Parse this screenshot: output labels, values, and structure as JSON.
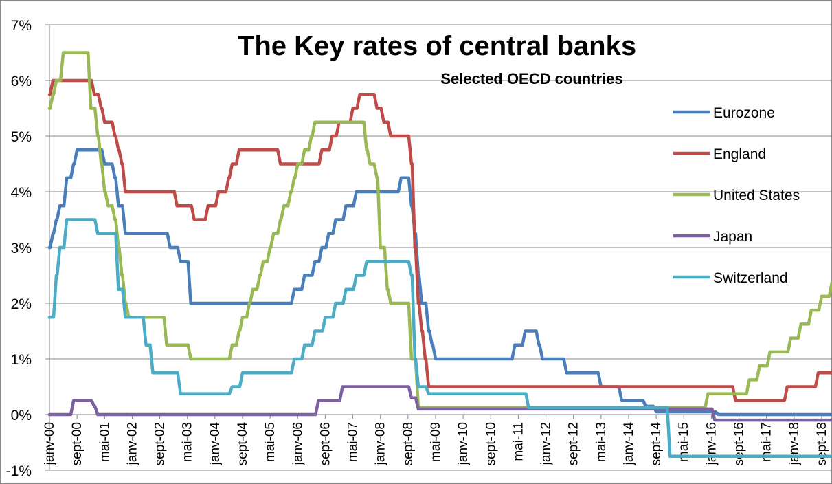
{
  "chart_data": {
    "type": "line",
    "title": "The Key rates of central banks",
    "subtitle": "Selected OECD countries",
    "xlabel": "",
    "ylabel": "",
    "xlim": [
      "2000-01",
      "2018-12"
    ],
    "ylim": [
      -1,
      7
    ],
    "y_ticks": [
      -1,
      0,
      1,
      2,
      3,
      4,
      5,
      6,
      7
    ],
    "y_tick_labels": [
      "-1%",
      "0%",
      "1%",
      "2%",
      "3%",
      "4%",
      "5%",
      "6%",
      "7%"
    ],
    "x_ticks": [
      "2000-01",
      "2000-09",
      "2001-05",
      "2002-01",
      "2002-09",
      "2003-05",
      "2004-01",
      "2004-09",
      "2005-05",
      "2006-01",
      "2006-09",
      "2007-05",
      "2008-01",
      "2008-09",
      "2009-05",
      "2010-01",
      "2010-09",
      "2011-05",
      "2012-01",
      "2012-09",
      "2013-05",
      "2014-01",
      "2014-09",
      "2015-05",
      "2016-01",
      "2016-09",
      "2017-05",
      "2018-01",
      "2018-09"
    ],
    "x_tick_labels": [
      "janv-00",
      "sept-00",
      "mai-01",
      "janv-02",
      "sept-02",
      "mai-03",
      "janv-04",
      "sept-04",
      "mai-05",
      "janv-06",
      "sept-06",
      "mai-07",
      "janv-08",
      "sept-08",
      "mai-09",
      "janv-10",
      "sept-10",
      "mai-11",
      "janv-12",
      "sept-12",
      "mai-13",
      "janv-14",
      "sept-14",
      "mai-15",
      "janv-16",
      "sept-16",
      "mai-17",
      "janv-18",
      "sept-18"
    ],
    "grid": "horizontal",
    "legend_position": "right",
    "series": [
      {
        "name": "Eurozone",
        "color": "#4A7EBB",
        "points": [
          [
            "2000-01",
            3
          ],
          [
            "2000-02",
            3.25
          ],
          [
            "2000-03",
            3.5
          ],
          [
            "2000-04",
            3.75
          ],
          [
            "2000-06",
            4.25
          ],
          [
            "2000-08",
            4.5
          ],
          [
            "2000-09",
            4.75
          ],
          [
            "2001-04",
            4.75
          ],
          [
            "2001-05",
            4.5
          ],
          [
            "2001-08",
            4.25
          ],
          [
            "2001-09",
            3.75
          ],
          [
            "2001-11",
            3.25
          ],
          [
            "2002-12",
            3.0
          ],
          [
            "2003-03",
            2.75
          ],
          [
            "2003-06",
            2.0
          ],
          [
            "2005-12",
            2.25
          ],
          [
            "2006-03",
            2.5
          ],
          [
            "2006-06",
            2.75
          ],
          [
            "2006-08",
            3.0
          ],
          [
            "2006-10",
            3.25
          ],
          [
            "2006-12",
            3.5
          ],
          [
            "2007-03",
            3.75
          ],
          [
            "2007-06",
            4.0
          ],
          [
            "2008-07",
            4.25
          ],
          [
            "2008-10",
            3.75
          ],
          [
            "2008-11",
            3.25
          ],
          [
            "2008-12",
            2.5
          ],
          [
            "2009-01",
            2.0
          ],
          [
            "2009-03",
            1.5
          ],
          [
            "2009-04",
            1.25
          ],
          [
            "2009-05",
            1.0
          ],
          [
            "2011-04",
            1.25
          ],
          [
            "2011-07",
            1.5
          ],
          [
            "2011-11",
            1.25
          ],
          [
            "2011-12",
            1.0
          ],
          [
            "2012-07",
            0.75
          ],
          [
            "2013-05",
            0.5
          ],
          [
            "2013-11",
            0.25
          ],
          [
            "2014-06",
            0.15
          ],
          [
            "2014-09",
            0.05
          ],
          [
            "2016-03",
            0.0
          ],
          [
            "2018-12",
            0.0
          ]
        ]
      },
      {
        "name": "England",
        "color": "#BE4B48",
        "points": [
          [
            "2000-01",
            5.75
          ],
          [
            "2000-02",
            6.0
          ],
          [
            "2001-02",
            5.75
          ],
          [
            "2001-04",
            5.5
          ],
          [
            "2001-05",
            5.25
          ],
          [
            "2001-08",
            5.0
          ],
          [
            "2001-09",
            4.75
          ],
          [
            "2001-10",
            4.5
          ],
          [
            "2001-11",
            4.0
          ],
          [
            "2003-02",
            3.75
          ],
          [
            "2003-07",
            3.5
          ],
          [
            "2003-11",
            3.75
          ],
          [
            "2004-02",
            4.0
          ],
          [
            "2004-05",
            4.25
          ],
          [
            "2004-06",
            4.5
          ],
          [
            "2004-08",
            4.75
          ],
          [
            "2005-08",
            4.5
          ],
          [
            "2006-08",
            4.75
          ],
          [
            "2006-11",
            5.0
          ],
          [
            "2007-01",
            5.25
          ],
          [
            "2007-05",
            5.5
          ],
          [
            "2007-07",
            5.75
          ],
          [
            "2007-12",
            5.5
          ],
          [
            "2008-02",
            5.25
          ],
          [
            "2008-04",
            5.0
          ],
          [
            "2008-10",
            4.5
          ],
          [
            "2008-11",
            3.0
          ],
          [
            "2008-12",
            2.0
          ],
          [
            "2009-01",
            1.5
          ],
          [
            "2009-02",
            1.0
          ],
          [
            "2009-03",
            0.5
          ],
          [
            "2016-08",
            0.25
          ],
          [
            "2017-11",
            0.5
          ],
          [
            "2018-08",
            0.75
          ],
          [
            "2018-12",
            0.75
          ]
        ]
      },
      {
        "name": "United States",
        "color": "#98B954",
        "points": [
          [
            "2000-01",
            5.5
          ],
          [
            "2000-02",
            5.75
          ],
          [
            "2000-03",
            6.0
          ],
          [
            "2000-05",
            6.5
          ],
          [
            "2000-12",
            6.5
          ],
          [
            "2001-01",
            5.5
          ],
          [
            "2001-03",
            5.0
          ],
          [
            "2001-04",
            4.5
          ],
          [
            "2001-05",
            4.0
          ],
          [
            "2001-06",
            3.75
          ],
          [
            "2001-08",
            3.5
          ],
          [
            "2001-09",
            3.0
          ],
          [
            "2001-10",
            2.5
          ],
          [
            "2001-11",
            2.0
          ],
          [
            "2001-12",
            1.75
          ],
          [
            "2002-11",
            1.25
          ],
          [
            "2003-06",
            1.0
          ],
          [
            "2004-06",
            1.25
          ],
          [
            "2004-08",
            1.5
          ],
          [
            "2004-09",
            1.75
          ],
          [
            "2004-11",
            2.0
          ],
          [
            "2004-12",
            2.25
          ],
          [
            "2005-02",
            2.5
          ],
          [
            "2005-03",
            2.75
          ],
          [
            "2005-05",
            3.0
          ],
          [
            "2005-06",
            3.25
          ],
          [
            "2005-08",
            3.5
          ],
          [
            "2005-09",
            3.75
          ],
          [
            "2005-11",
            4.0
          ],
          [
            "2005-12",
            4.25
          ],
          [
            "2006-01",
            4.5
          ],
          [
            "2006-03",
            4.75
          ],
          [
            "2006-05",
            5.0
          ],
          [
            "2006-06",
            5.25
          ],
          [
            "2007-09",
            4.75
          ],
          [
            "2007-10",
            4.5
          ],
          [
            "2007-12",
            4.25
          ],
          [
            "2008-01",
            3.0
          ],
          [
            "2008-03",
            2.25
          ],
          [
            "2008-04",
            2.0
          ],
          [
            "2008-10",
            1.0
          ],
          [
            "2008-12",
            0.125
          ],
          [
            "2015-12",
            0.375
          ],
          [
            "2016-12",
            0.625
          ],
          [
            "2017-03",
            0.875
          ],
          [
            "2017-06",
            1.125
          ],
          [
            "2017-12",
            1.375
          ],
          [
            "2018-03",
            1.625
          ],
          [
            "2018-06",
            1.875
          ],
          [
            "2018-09",
            2.125
          ],
          [
            "2018-12",
            2.375
          ]
        ]
      },
      {
        "name": "Japan",
        "color": "#7D60A0",
        "points": [
          [
            "2000-01",
            0.0
          ],
          [
            "2000-08",
            0.25
          ],
          [
            "2001-02",
            0.15
          ],
          [
            "2001-03",
            0.0
          ],
          [
            "2006-07",
            0.25
          ],
          [
            "2007-02",
            0.5
          ],
          [
            "2008-10",
            0.3
          ],
          [
            "2008-12",
            0.1
          ],
          [
            "2016-02",
            -0.1
          ],
          [
            "2018-12",
            -0.1
          ]
        ]
      },
      {
        "name": "Switzerland",
        "color": "#4BACC6",
        "points": [
          [
            "2000-01",
            1.75
          ],
          [
            "2000-03",
            2.5
          ],
          [
            "2000-04",
            3.0
          ],
          [
            "2000-06",
            3.5
          ],
          [
            "2001-03",
            3.25
          ],
          [
            "2001-09",
            2.25
          ],
          [
            "2001-11",
            1.75
          ],
          [
            "2002-05",
            1.25
          ],
          [
            "2002-07",
            0.75
          ],
          [
            "2003-03",
            0.375
          ],
          [
            "2004-06",
            0.5
          ],
          [
            "2004-09",
            0.75
          ],
          [
            "2005-12",
            1.0
          ],
          [
            "2006-03",
            1.25
          ],
          [
            "2006-06",
            1.5
          ],
          [
            "2006-09",
            1.75
          ],
          [
            "2006-12",
            2.0
          ],
          [
            "2007-03",
            2.25
          ],
          [
            "2007-06",
            2.5
          ],
          [
            "2007-09",
            2.75
          ],
          [
            "2008-10",
            2.5
          ],
          [
            "2008-11",
            1.0
          ],
          [
            "2008-12",
            0.5
          ],
          [
            "2009-03",
            0.375
          ],
          [
            "2011-08",
            0.125
          ],
          [
            "2015-01",
            -0.75
          ],
          [
            "2018-12",
            -0.75
          ]
        ]
      }
    ]
  }
}
